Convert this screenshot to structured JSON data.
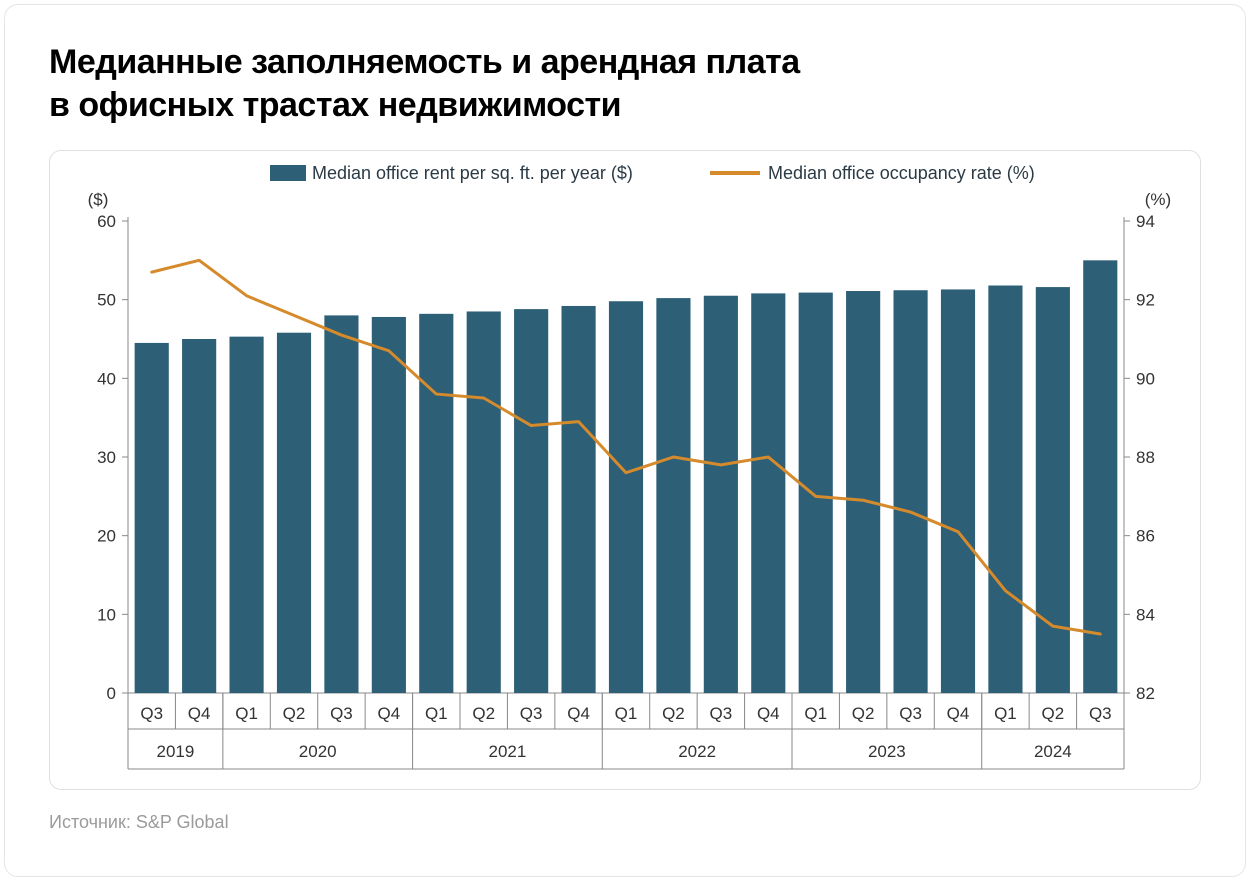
{
  "title_line1": "Медианные заполняемость и арендная плата",
  "title_line2": "в офисных трастах недвижимости",
  "source_label": "Источник: S&P Global",
  "chart": {
    "type": "bar+line-dual-axis",
    "background_color": "#ffffff",
    "frame_border_color": "#e0e0e0",
    "bar_color": "#2d5f77",
    "line_color": "#d58a2c",
    "axis_text_color": "#333333",
    "grid_color": "#888888",
    "bar_width_ratio": 0.72,
    "line_width": 3,
    "legend": {
      "bar_label": "Median office rent per sq. ft. per year ($)",
      "line_label": "Median office occupancy rate (%)",
      "fontsize": 18
    },
    "left_axis": {
      "unit": "($)",
      "min": 0,
      "max": 60,
      "ticks": [
        0,
        10,
        20,
        30,
        40,
        50,
        60
      ],
      "fontsize": 17
    },
    "right_axis": {
      "unit": "(%)",
      "min": 82,
      "max": 94,
      "ticks": [
        82,
        84,
        86,
        88,
        90,
        92,
        94
      ],
      "fontsize": 17
    },
    "quarters": [
      "Q3",
      "Q4",
      "Q1",
      "Q2",
      "Q3",
      "Q4",
      "Q1",
      "Q2",
      "Q3",
      "Q4",
      "Q1",
      "Q2",
      "Q3",
      "Q4",
      "Q1",
      "Q2",
      "Q3",
      "Q4",
      "Q1",
      "Q2",
      "Q3"
    ],
    "year_groups": [
      {
        "year": "2019",
        "span": 2
      },
      {
        "year": "2020",
        "span": 4
      },
      {
        "year": "2021",
        "span": 4
      },
      {
        "year": "2022",
        "span": 4
      },
      {
        "year": "2023",
        "span": 4
      },
      {
        "year": "2024",
        "span": 3
      }
    ],
    "rent_values": [
      44.5,
      45.0,
      45.3,
      45.8,
      48.0,
      47.8,
      48.2,
      48.5,
      48.8,
      49.2,
      49.8,
      50.2,
      50.5,
      50.8,
      50.9,
      51.1,
      51.2,
      51.3,
      51.8,
      51.6,
      55.0
    ],
    "occupancy_values": [
      92.7,
      93.0,
      92.1,
      91.6,
      91.1,
      90.7,
      89.6,
      89.5,
      88.8,
      88.9,
      87.6,
      88.0,
      87.8,
      88.0,
      87.0,
      86.9,
      86.6,
      86.1,
      84.6,
      83.7,
      83.5
    ]
  }
}
